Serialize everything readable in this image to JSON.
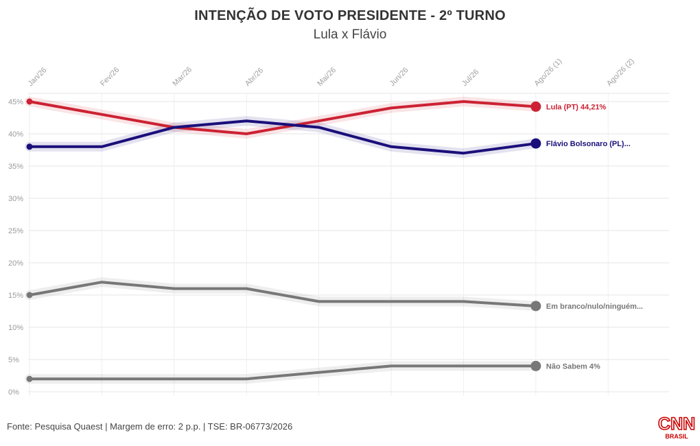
{
  "title": "INTENÇÃO DE VOTO PRESIDENTE - 2º TURNO",
  "subtitle": "Lula x Flávio",
  "source": "Fonte: Pesquisa Quaest | Margem de erro: 2 p.p. | TSE: BR-06773/2026",
  "logo": {
    "main": "CNN",
    "sub": "BRASIL",
    "color": "#cc0000"
  },
  "chart_data": {
    "type": "line",
    "categories": [
      "Jan/26",
      "Fev/26",
      "Mar/26",
      "Abr/26",
      "Mai/26",
      "Jun/26",
      "Jul/26",
      "Ago/26 (1)",
      "Ago/26 (2)"
    ],
    "yticks": [
      "0%",
      "5%",
      "10%",
      "15%",
      "20%",
      "25%",
      "30%",
      "35%",
      "40%",
      "45%"
    ],
    "ylim": [
      0,
      45
    ],
    "grid": true,
    "series": [
      {
        "name": "Lula (PT)",
        "label": "Lula (PT) 44,21%",
        "color": "#cc2233",
        "values": [
          45,
          43,
          41,
          40,
          42,
          44,
          45,
          44.21,
          null
        ]
      },
      {
        "name": "Flávio Bolsonaro (PL)",
        "label": "Flávio Bolsonaro (PL)...",
        "color": "#1a0f7a",
        "values": [
          38,
          38,
          41,
          42,
          41,
          38,
          37,
          38.5,
          null
        ]
      },
      {
        "name": "Em branco/nulo/ninguém",
        "label": "Em branco/nulo/ninguém...",
        "color": "#777777",
        "values": [
          15,
          17,
          16,
          16,
          14,
          14,
          14,
          13.3,
          null
        ]
      },
      {
        "name": "Não Sabem",
        "label": "Não Sabem 4%",
        "color": "#777777",
        "values": [
          2,
          2,
          2,
          2,
          3,
          4,
          4,
          4,
          null
        ]
      }
    ]
  }
}
